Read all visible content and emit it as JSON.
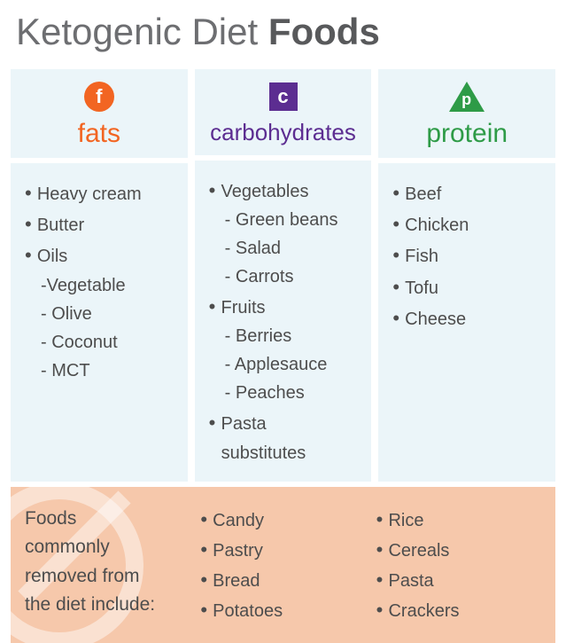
{
  "title": {
    "pre": "Ketogenic Diet ",
    "bold": "Foods"
  },
  "columns": [
    {
      "key": "fats",
      "badge_letter": "f",
      "badge_shape": "circle",
      "badge_bg": "#f26522",
      "title": "fats",
      "title_color": "#f26522",
      "items": [
        {
          "text": "Heavy cream",
          "type": "main"
        },
        {
          "text": "Butter",
          "type": "main"
        },
        {
          "text": "Oils",
          "type": "main"
        },
        {
          "text": "Vegetable",
          "type": "subdash"
        },
        {
          "text": "Olive",
          "type": "sub"
        },
        {
          "text": "Coconut",
          "type": "sub"
        },
        {
          "text": "MCT",
          "type": "sub"
        }
      ]
    },
    {
      "key": "carbs",
      "badge_letter": "c",
      "badge_shape": "square",
      "badge_bg": "#5c2d91",
      "title": "carbohydrates",
      "title_color": "#5c2d91",
      "items": [
        {
          "text": "Vegetables",
          "type": "main"
        },
        {
          "text": "Green beans",
          "type": "sub"
        },
        {
          "text": "Salad",
          "type": "sub"
        },
        {
          "text": "Carrots",
          "type": "sub"
        },
        {
          "text": "Fruits",
          "type": "main"
        },
        {
          "text": "Berries",
          "type": "sub"
        },
        {
          "text": "Applesauce",
          "type": "sub"
        },
        {
          "text": "Peaches",
          "type": "sub"
        },
        {
          "text": "Pasta",
          "type": "main"
        },
        {
          "text": "substitutes",
          "type": "cont"
        }
      ]
    },
    {
      "key": "protein",
      "badge_letter": "p",
      "badge_shape": "triangle",
      "badge_bg": "#2e9b47",
      "title": "protein",
      "title_color": "#2e9b47",
      "items": [
        {
          "text": "Beef",
          "type": "main"
        },
        {
          "text": "Chicken",
          "type": "main"
        },
        {
          "text": "Fish",
          "type": "main"
        },
        {
          "text": "Tofu",
          "type": "main"
        },
        {
          "text": "Cheese",
          "type": "main"
        }
      ]
    }
  ],
  "removed": {
    "label_lines": [
      "Foods",
      "commonly",
      "removed from",
      "the diet include:"
    ],
    "col2": [
      "Candy",
      "Pastry",
      "Bread",
      "Potatoes"
    ],
    "col3": [
      "Rice",
      "Cereals",
      "Pasta",
      "Crackers"
    ]
  },
  "style": {
    "page_bg": "#ffffff",
    "panel_bg": "#ebf5f9",
    "removed_bg": "#f6c8ab",
    "text_color": "#4d4d4d",
    "title_color_light": "#6d6e71",
    "title_color_bold": "#58595b",
    "title_fontsize": 42,
    "col_title_fontsize": 30,
    "body_fontsize": 20
  }
}
